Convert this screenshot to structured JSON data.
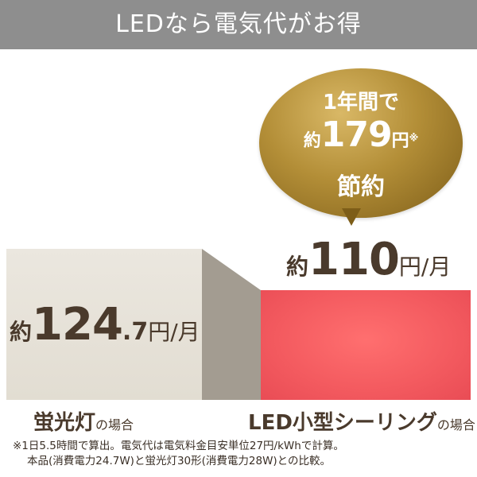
{
  "header": {
    "title": "LEDなら電気代がお得"
  },
  "bubble": {
    "line1": "1年間で",
    "prefix": "約",
    "amount": "179",
    "unit": "円",
    "mark": "※",
    "line3": "節約",
    "color": "#b38e37"
  },
  "fluorescent": {
    "prefix": "約",
    "amount": "124",
    "decimal": ".7",
    "unit": "円/月",
    "label": "蛍光灯",
    "label_suffix": "の場合",
    "bar_color": "#e6e2d9",
    "monthly_yen": 124.7
  },
  "led": {
    "prefix": "約",
    "amount": "110",
    "unit": "円/月",
    "label": "LED小型シーリング",
    "label_suffix": "の場合",
    "bar_color": "#f35a5f",
    "monthly_yen": 110
  },
  "note": {
    "line1": "※1日5.5時間で算出。電気代は電気料金目安単位27円/kWhで計算。",
    "line2": "本品(消費電力24.7W)と蛍光灯30形(消費電力28W)との比較。"
  }
}
